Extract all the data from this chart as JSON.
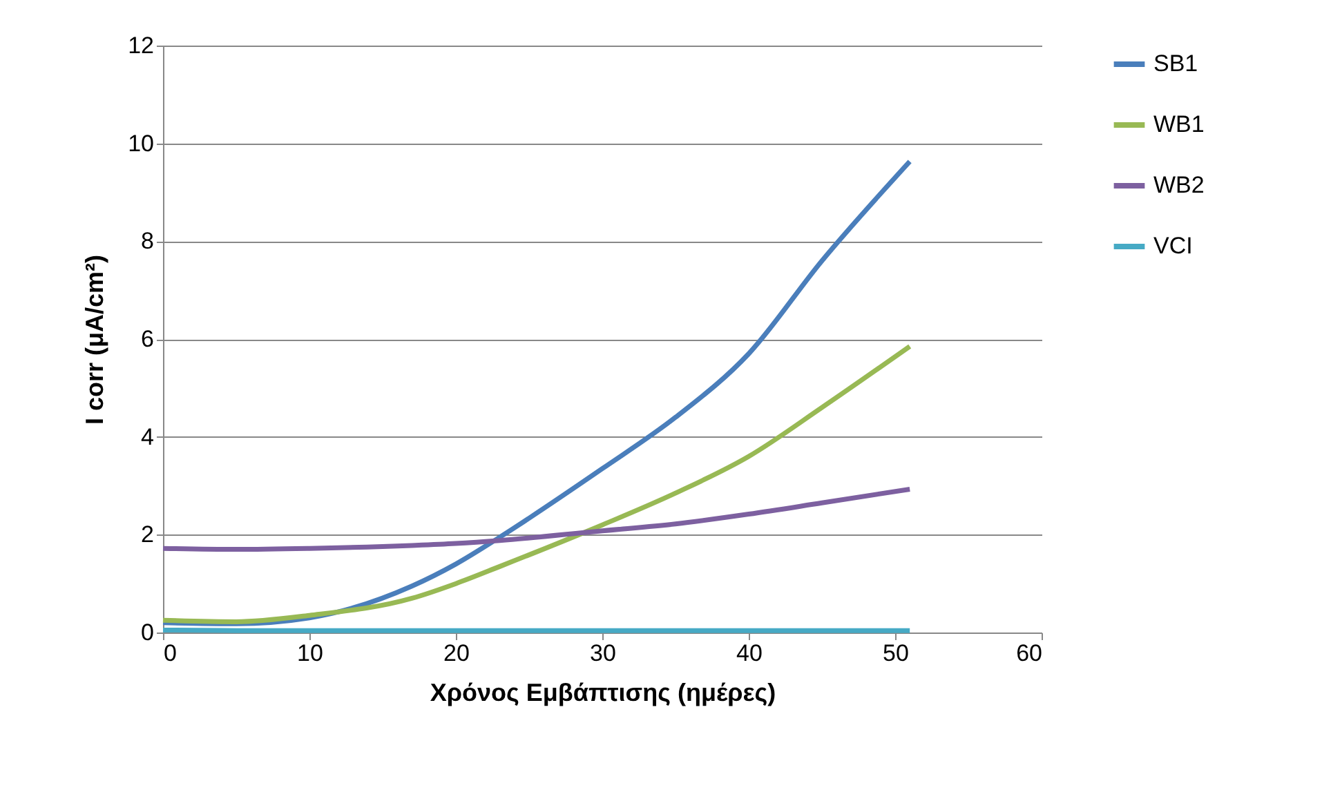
{
  "chart_data": {
    "type": "line",
    "xlabel": "Χρόνος Εμβάπτισης (ημέρες)",
    "ylabel": "I corr (μA/cm²)",
    "xlim": [
      0,
      60
    ],
    "xticks": [
      0,
      10,
      20,
      30,
      40,
      50,
      60
    ],
    "ylim": [
      0,
      12
    ],
    "yticks": [
      0,
      2,
      4,
      6,
      8,
      10,
      12
    ],
    "grid": "y",
    "legend": "right",
    "marker": "none",
    "line_style": "solid",
    "x": [
      0,
      5,
      10,
      17,
      20,
      23,
      30,
      35,
      40,
      45,
      51
    ],
    "series": [
      {
        "name": "SB1",
        "color": "#4a7ebb",
        "values": [
          0.2,
          0.18,
          0.3,
          0.95,
          1.4,
          1.95,
          3.35,
          4.4,
          5.7,
          7.6,
          9.63
        ]
      },
      {
        "name": "WB1",
        "color": "#98b954",
        "values": [
          0.25,
          0.22,
          0.35,
          0.7,
          1.0,
          1.35,
          2.2,
          2.85,
          3.6,
          4.6,
          5.85
        ]
      },
      {
        "name": "WB2",
        "color": "#7d60a0",
        "values": [
          1.72,
          1.7,
          1.72,
          1.78,
          1.82,
          1.88,
          2.08,
          2.22,
          2.42,
          2.65,
          2.93
        ]
      },
      {
        "name": "VCI",
        "color": "#46aac5",
        "values": [
          0.05,
          0.04,
          0.04,
          0.04,
          0.04,
          0.04,
          0.04,
          0.04,
          0.04,
          0.04,
          0.04
        ]
      }
    ]
  }
}
